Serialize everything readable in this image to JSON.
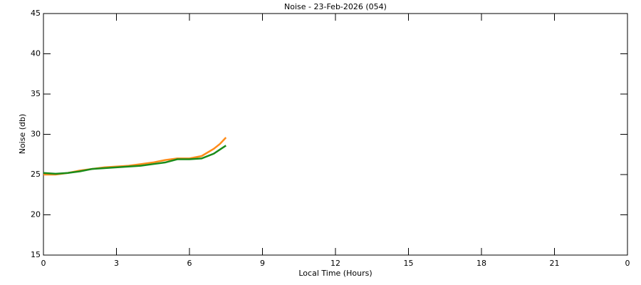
{
  "chart_data": {
    "type": "line",
    "title": "Noise - 23-Feb-2026 (054)",
    "xlabel": "Local Time (Hours)",
    "ylabel": "Noise (db)",
    "x": [
      0,
      0.5,
      1,
      1.5,
      2,
      2.5,
      3,
      3.5,
      4,
      4.5,
      5,
      5.5,
      6,
      6.5,
      7,
      7.25,
      7.5
    ],
    "series": [
      {
        "color": "#ff8c1a",
        "values": [
          25.0,
          25.0,
          25.2,
          25.5,
          25.7,
          25.9,
          26.0,
          26.1,
          26.3,
          26.5,
          26.8,
          27.0,
          27.0,
          27.3,
          28.2,
          28.8,
          29.6
        ]
      },
      {
        "color": "#1a8c1a",
        "values": [
          25.2,
          25.1,
          25.2,
          25.4,
          25.7,
          25.8,
          25.9,
          26.0,
          26.1,
          26.3,
          26.5,
          26.9,
          26.9,
          27.0,
          27.6,
          28.1,
          28.6
        ]
      }
    ],
    "xlim": [
      0,
      24
    ],
    "xticks": [
      0,
      3,
      6,
      9,
      12,
      15,
      18,
      21,
      {
        "value": 24,
        "label": "0"
      }
    ],
    "ylim": [
      15,
      45
    ],
    "yticks": [
      15,
      20,
      25,
      30,
      35,
      40,
      45
    ]
  }
}
